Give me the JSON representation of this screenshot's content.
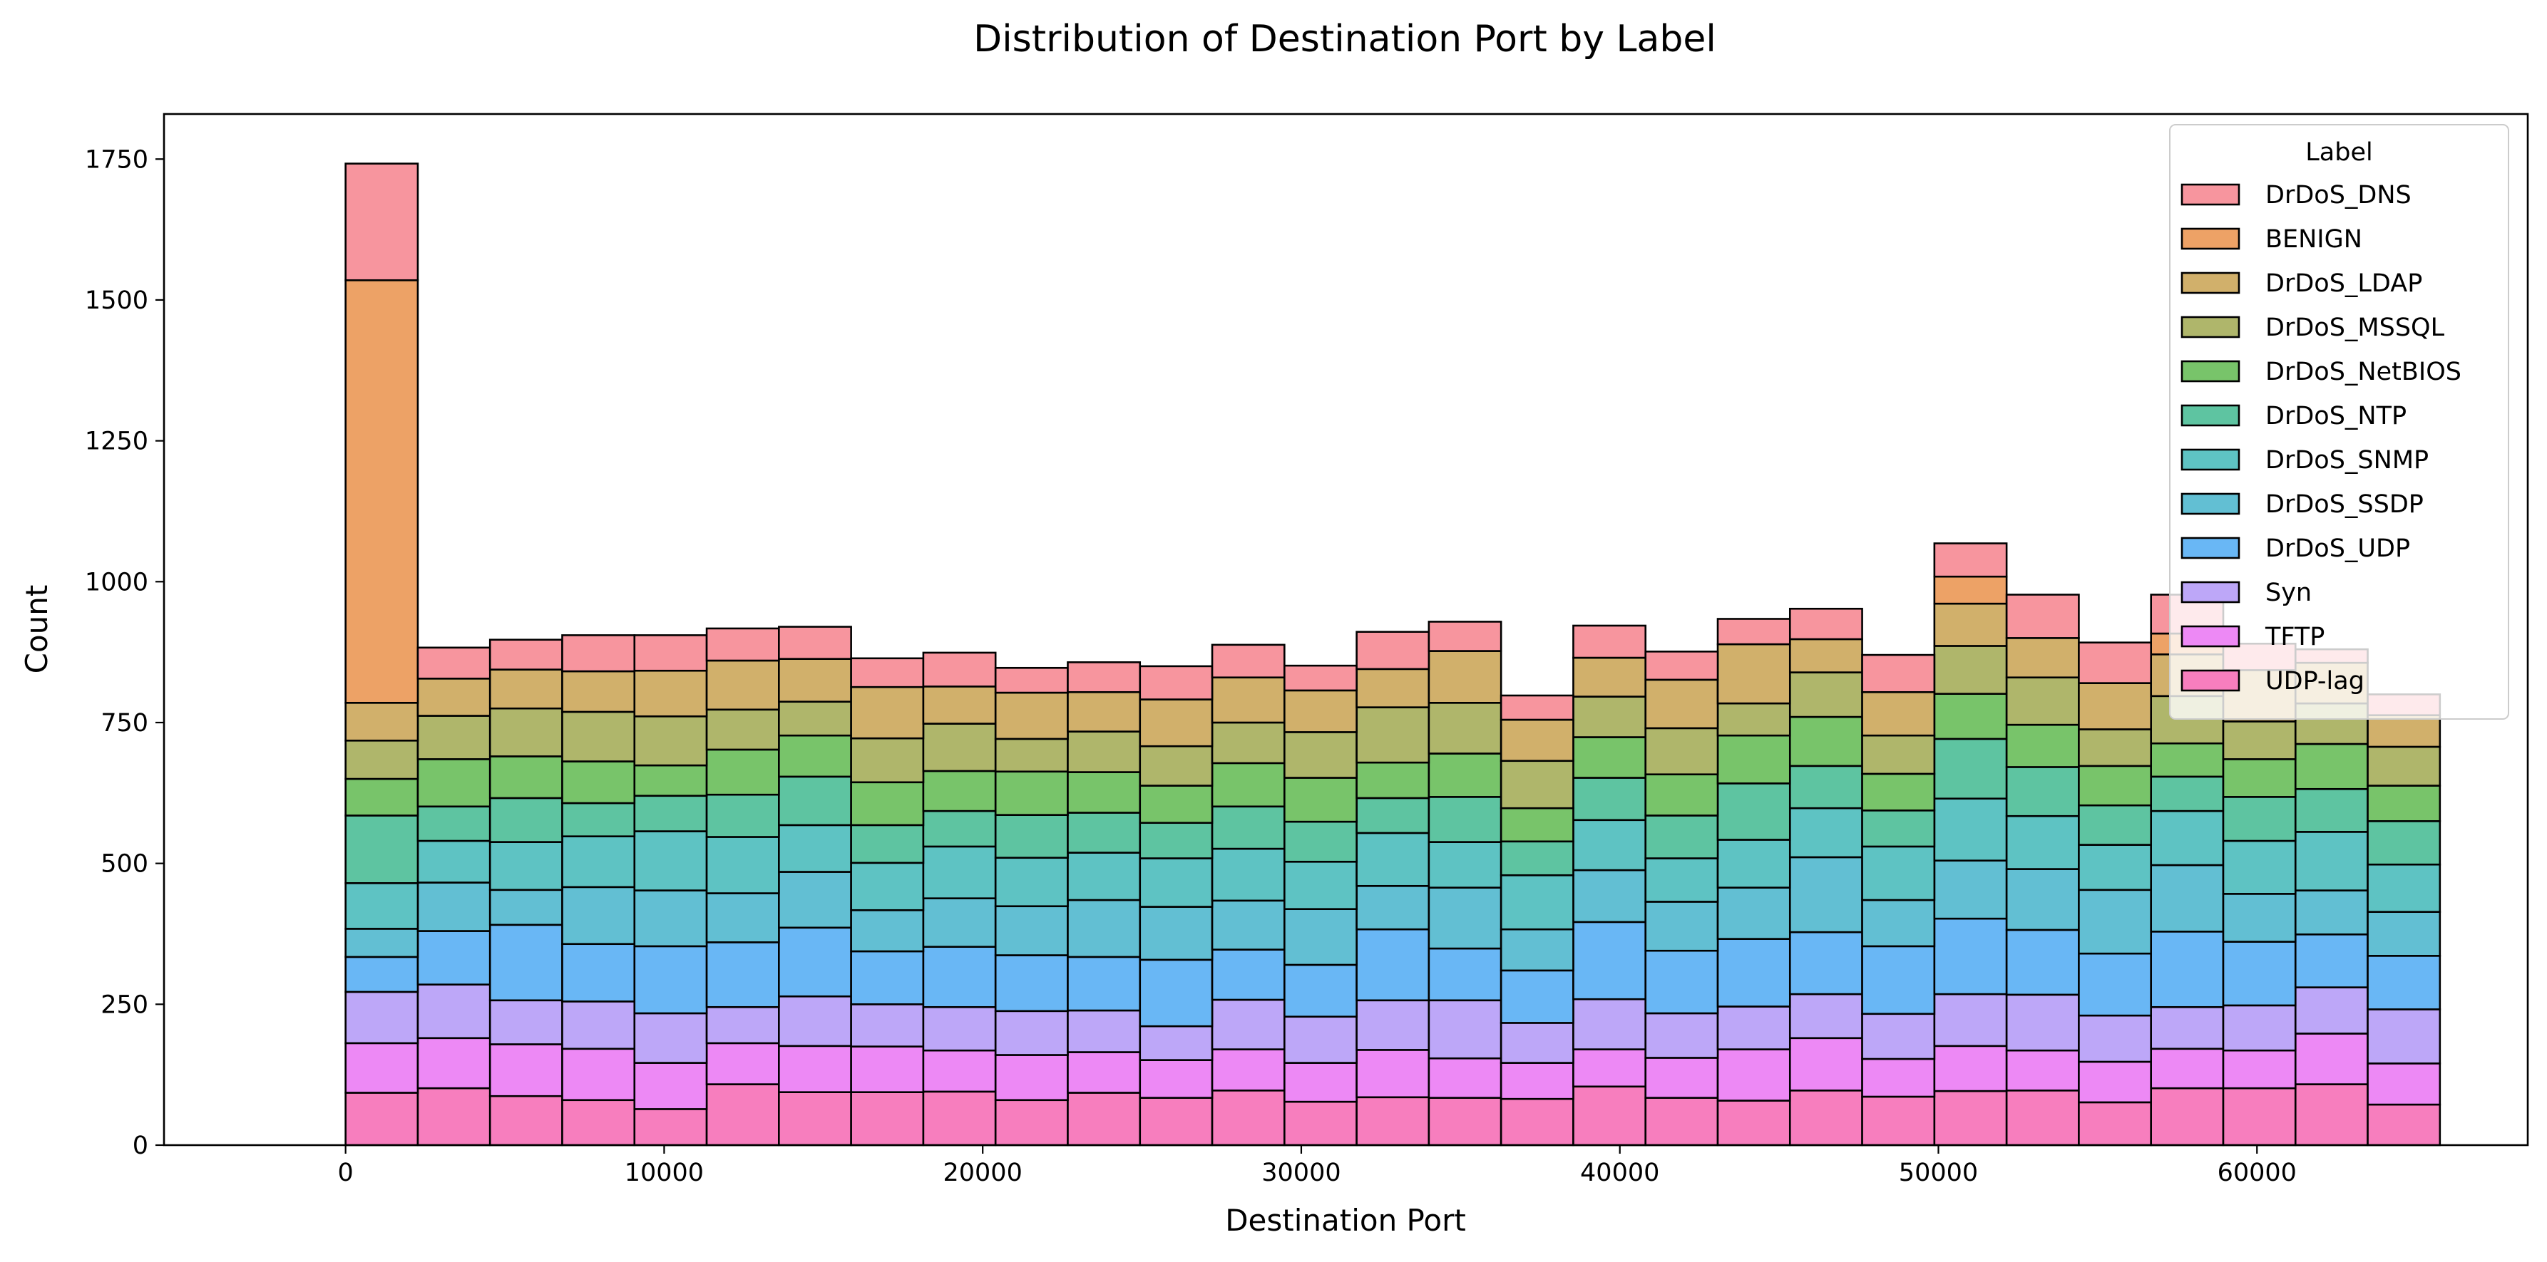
{
  "chart_data": {
    "type": "bar",
    "stacked": true,
    "title": "Distribution of  Destination Port by Label",
    "xlabel": "Destination Port",
    "ylabel": "Count",
    "xlim": [
      -5700,
      68500
    ],
    "ylim": [
      0,
      1830
    ],
    "xticks": [
      0,
      10000,
      20000,
      30000,
      40000,
      50000,
      60000
    ],
    "yticks": [
      0,
      250,
      500,
      750,
      1000,
      1250,
      1500,
      1750
    ],
    "bin_width": 2267,
    "bin_starts": [
      0,
      2267,
      4534,
      6801,
      9068,
      11335,
      13602,
      15869,
      18136,
      20403,
      22670,
      24937,
      27204,
      29471,
      31738,
      34005,
      36272,
      38539,
      40806,
      43073,
      45340,
      47607,
      49874,
      52141,
      54408,
      56675,
      58942,
      61209,
      63476
    ],
    "legend": {
      "title": "Label",
      "position": "top-right"
    },
    "series": [
      {
        "name": "UDP-lag",
        "color": "#f77ebe",
        "values": [
          93,
          101,
          87,
          80,
          64,
          108,
          94,
          94,
          95,
          80,
          93,
          84,
          97,
          77,
          85,
          84,
          82,
          104,
          84,
          79,
          97,
          86,
          96,
          97,
          76,
          101,
          101,
          108,
          72
        ]
      },
      {
        "name": "TFTP",
        "color": "#ed89f5",
        "values": [
          88,
          89,
          92,
          91,
          82,
          73,
          82,
          81,
          73,
          80,
          72,
          67,
          73,
          69,
          84,
          70,
          64,
          66,
          71,
          91,
          93,
          67,
          80,
          71,
          72,
          70,
          67,
          90,
          73
        ]
      },
      {
        "name": "Syn",
        "color": "#bda7f8",
        "values": [
          91,
          95,
          78,
          84,
          88,
          64,
          88,
          75,
          77,
          78,
          74,
          60,
          88,
          82,
          88,
          103,
          71,
          89,
          79,
          76,
          78,
          80,
          92,
          99,
          82,
          74,
          80,
          82,
          96
        ]
      },
      {
        "name": "DrDoS_UDP",
        "color": "#69b7f5",
        "values": [
          62,
          95,
          134,
          102,
          119,
          115,
          122,
          94,
          107,
          99,
          95,
          118,
          89,
          92,
          126,
          92,
          93,
          137,
          111,
          120,
          110,
          120,
          134,
          115,
          110,
          134,
          113,
          94,
          95
        ]
      },
      {
        "name": "DrDoS_SSDP",
        "color": "#62bfd3",
        "values": [
          50,
          86,
          62,
          101,
          99,
          87,
          99,
          73,
          86,
          87,
          101,
          94,
          87,
          99,
          77,
          108,
          73,
          92,
          87,
          91,
          133,
          82,
          103,
          108,
          113,
          118,
          85,
          78,
          78
        ]
      },
      {
        "name": "DrDoS_SNMP",
        "color": "#5ec3c3",
        "values": [
          81,
          74,
          85,
          90,
          105,
          100,
          83,
          84,
          92,
          86,
          84,
          86,
          92,
          84,
          94,
          81,
          96,
          89,
          77,
          85,
          87,
          95,
          110,
          94,
          80,
          96,
          94,
          104,
          84
        ]
      },
      {
        "name": "DrDoS_NTP",
        "color": "#5ec4a1",
        "values": [
          120,
          61,
          78,
          59,
          63,
          75,
          86,
          67,
          63,
          76,
          71,
          63,
          75,
          71,
          62,
          80,
          60,
          75,
          76,
          100,
          75,
          64,
          106,
          87,
          70,
          61,
          78,
          76,
          77
        ]
      },
      {
        "name": "DrDoS_NetBIOS",
        "color": "#78c46a",
        "values": [
          65,
          84,
          74,
          74,
          54,
          80,
          73,
          76,
          71,
          77,
          72,
          66,
          77,
          78,
          63,
          77,
          59,
          72,
          73,
          85,
          87,
          65,
          80,
          75,
          70,
          59,
          67,
          80,
          63
        ]
      },
      {
        "name": "DrDoS_MSSQL",
        "color": "#afb66b",
        "values": [
          68,
          77,
          85,
          88,
          87,
          71,
          60,
          78,
          84,
          58,
          72,
          70,
          72,
          81,
          98,
          90,
          84,
          72,
          82,
          57,
          79,
          68,
          85,
          84,
          65,
          84,
          67,
          72,
          69
        ]
      },
      {
        "name": "DrDoS_LDAP",
        "color": "#d1b06b",
        "values": [
          67,
          66,
          69,
          72,
          81,
          87,
          76,
          91,
          66,
          82,
          70,
          83,
          80,
          74,
          68,
          92,
          73,
          69,
          86,
          105,
          59,
          77,
          75,
          70,
          82,
          74,
          91,
          72,
          56
        ]
      },
      {
        "name": "BENIGN",
        "color": "#eda266",
        "values": [
          750,
          0,
          0,
          0,
          0,
          0,
          0,
          0,
          0,
          0,
          0,
          0,
          0,
          0,
          0,
          0,
          0,
          0,
          0,
          0,
          0,
          0,
          48,
          0,
          0,
          37,
          0,
          0,
          0
        ]
      },
      {
        "name": "DrDoS_DNS",
        "color": "#f7959e",
        "values": [
          207,
          55,
          53,
          64,
          63,
          57,
          57,
          51,
          60,
          44,
          53,
          59,
          58,
          44,
          66,
          52,
          43,
          57,
          50,
          45,
          54,
          66,
          59,
          77,
          72,
          69,
          47,
          24,
          37
        ]
      }
    ]
  }
}
